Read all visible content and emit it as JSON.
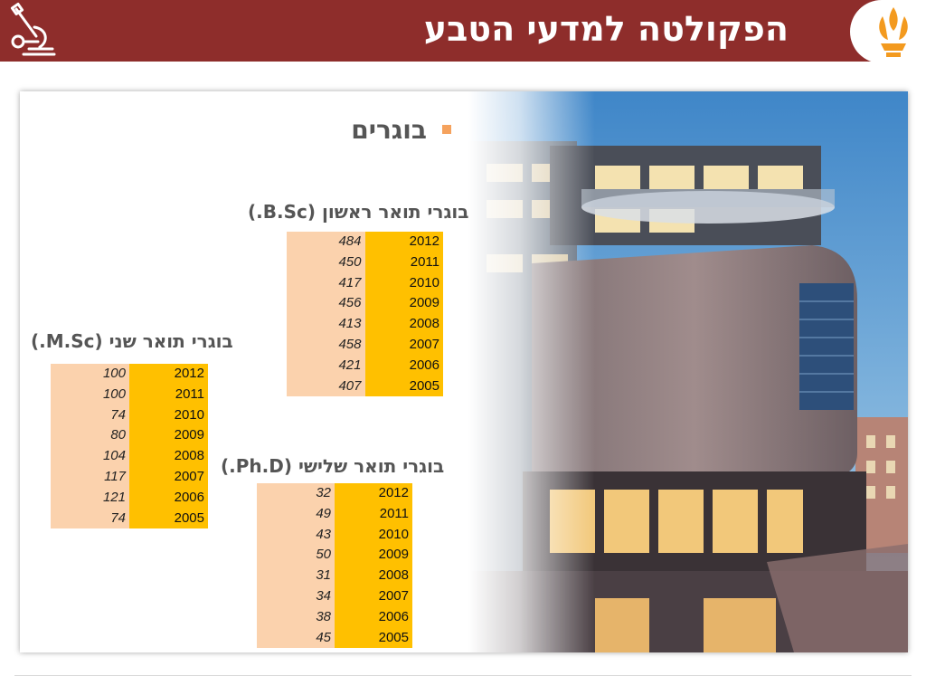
{
  "header": {
    "title": "הפקולטה למדעי הטבע",
    "bg_color": "#8e2d2b",
    "left_icon": "microscope-icon",
    "right_logo": "university-emblem-logo"
  },
  "content": {
    "section_title": "בוגרים",
    "bullet_color": "#f5a25d",
    "photo": "faculty-building-photo"
  },
  "tables": {
    "bsc": {
      "title": "בוגרי תואר ראשון (B.Sc.)",
      "rows": [
        {
          "value": "484",
          "year": "2012"
        },
        {
          "value": "450",
          "year": "2011"
        },
        {
          "value": "417",
          "year": "2010"
        },
        {
          "value": "456",
          "year": "2009"
        },
        {
          "value": "413",
          "year": "2008"
        },
        {
          "value": "458",
          "year": "2007"
        },
        {
          "value": "421",
          "year": "2006"
        },
        {
          "value": "407",
          "year": "2005"
        }
      ]
    },
    "msc": {
      "title": "בוגרי תואר שני (M.Sc.)",
      "rows": [
        {
          "value": "100",
          "year": "2012"
        },
        {
          "value": "100",
          "year": "2011"
        },
        {
          "value": "74",
          "year": "2010"
        },
        {
          "value": "80",
          "year": "2009"
        },
        {
          "value": "104",
          "year": "2008"
        },
        {
          "value": "117",
          "year": "2007"
        },
        {
          "value": "121",
          "year": "2006"
        },
        {
          "value": "74",
          "year": "2005"
        }
      ]
    },
    "phd": {
      "title": "בוגרי תואר שלישי (Ph.D.)",
      "rows": [
        {
          "value": "32",
          "year": "2012"
        },
        {
          "value": "49",
          "year": "2011"
        },
        {
          "value": "43",
          "year": "2010"
        },
        {
          "value": "50",
          "year": "2009"
        },
        {
          "value": "31",
          "year": "2008"
        },
        {
          "value": "34",
          "year": "2007"
        },
        {
          "value": "38",
          "year": "2006"
        },
        {
          "value": "45",
          "year": "2005"
        }
      ]
    }
  },
  "colors": {
    "value_cell": "#fbd2ad",
    "year_cell": "#ffc000"
  }
}
